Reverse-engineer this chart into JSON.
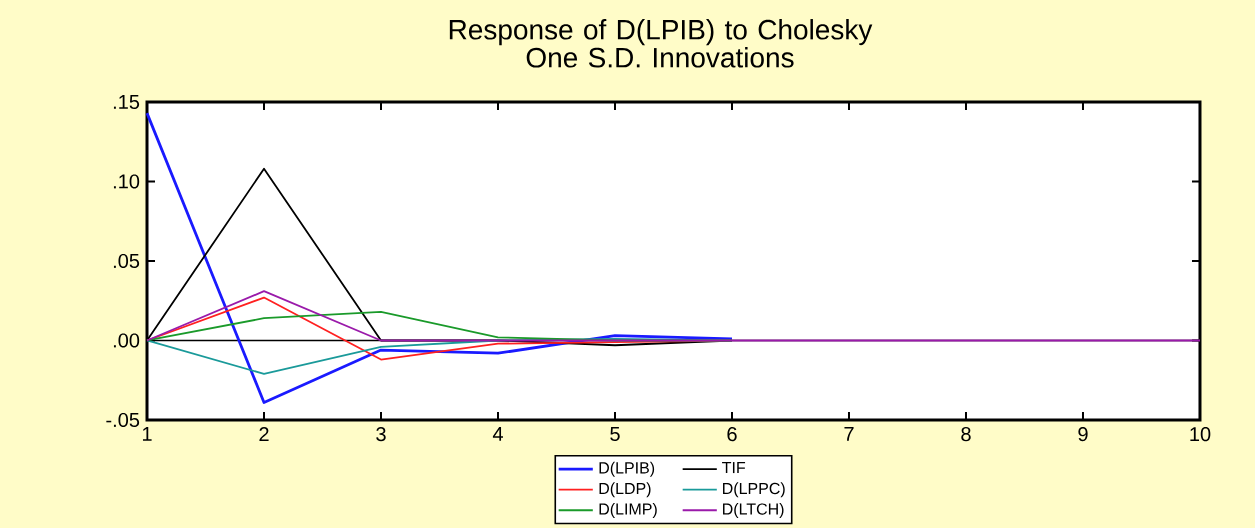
{
  "chart_data": {
    "type": "line",
    "title": "Response of D(LPIB) to Cholesky\nOne S.D. Innovations",
    "x": [
      1,
      2,
      3,
      4,
      5,
      6,
      7,
      8,
      9,
      10
    ],
    "series": [
      {
        "name": "D(LPIB)",
        "color": "#1a1aff",
        "values": [
          0.143,
          -0.039,
          -0.006,
          -0.008,
          0.003,
          0.001,
          null,
          null,
          null,
          null
        ]
      },
      {
        "name": "TIF",
        "color": "#000000",
        "values": [
          0.0,
          0.108,
          0.0,
          0.0,
          -0.003,
          0.0,
          null,
          null,
          null,
          null
        ]
      },
      {
        "name": "D(LDP)",
        "color": "#ff2020",
        "values": [
          0.0,
          0.027,
          -0.012,
          -0.002,
          -0.001,
          0.0,
          null,
          null,
          null,
          null
        ]
      },
      {
        "name": "D(LPPC)",
        "color": "#1a9a9a",
        "values": [
          0.0,
          -0.021,
          -0.004,
          0.0,
          0.001,
          0.0,
          null,
          null,
          null,
          null
        ]
      },
      {
        "name": "D(LIMP)",
        "color": "#1a9a2a",
        "values": [
          0.0,
          0.014,
          0.018,
          0.002,
          0.0,
          0.0,
          null,
          null,
          null,
          null
        ]
      },
      {
        "name": "D(LTCH)",
        "color": "#9a1aaa",
        "values": [
          0.0,
          0.031,
          0.0,
          0.0,
          0.0,
          0.0,
          0.0,
          0.0,
          0.0,
          0.0
        ]
      }
    ],
    "xlim": [
      1,
      10
    ],
    "ylim": [
      -0.05,
      0.15
    ],
    "xticks": [
      1,
      2,
      3,
      4,
      5,
      6,
      7,
      8,
      9,
      10
    ],
    "yticks": [
      {
        "value": -0.05,
        "label": "-.05"
      },
      {
        "value": 0.0,
        "label": ".00"
      },
      {
        "value": 0.05,
        "label": ".05"
      },
      {
        "value": 0.1,
        "label": ".10"
      },
      {
        "value": 0.15,
        "label": ".15"
      }
    ],
    "ref_lines": [
      {
        "axis": "y",
        "value": 0,
        "color": "#000000"
      }
    ],
    "legend": "bottom",
    "grid": false,
    "marker": "none",
    "line_style": "solid"
  }
}
